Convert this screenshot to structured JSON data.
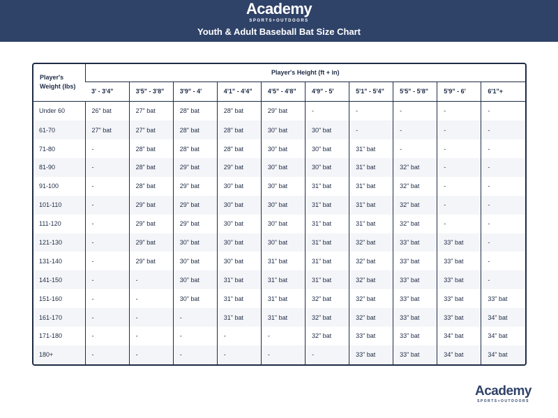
{
  "brand": {
    "name": "Academy",
    "tagline": "SPORTS+OUTDOORS"
  },
  "title": "Youth & Adult Baseball Bat Size Chart",
  "table": {
    "weight_header": "Player's Weight (lbs)",
    "height_header": "Player's Height (ft + in)",
    "heights": [
      "3' - 3'4\"",
      "3'5\" - 3'8\"",
      "3'9\" - 4'",
      "4'1\" - 4'4\"",
      "4'5\" - 4'8\"",
      "4'9\" - 5'",
      "5'1\" - 5'4\"",
      "5'5\" - 5'8\"",
      "5'9\" - 6'",
      "6'1\"+"
    ],
    "rows": [
      {
        "weight": "Under 60",
        "cells": [
          "26\" bat",
          "27\" bat",
          "28\" bat",
          "28\" bat",
          "29\" bat",
          "-",
          "-",
          "-",
          "-",
          "-"
        ]
      },
      {
        "weight": "61-70",
        "cells": [
          "27\" bat",
          "27\" bat",
          "28\" bat",
          "28\" bat",
          "30\" bat",
          "30\" bat",
          "-",
          "-",
          "-",
          "-"
        ]
      },
      {
        "weight": "71-80",
        "cells": [
          "-",
          "28\" bat",
          "28\" bat",
          "28\" bat",
          "30\" bat",
          "30\" bat",
          "31\" bat",
          "-",
          "-",
          "-"
        ]
      },
      {
        "weight": "81-90",
        "cells": [
          "-",
          "28\" bat",
          "29\" bat",
          "29\" bat",
          "30\" bat",
          "30\" bat",
          "31\" bat",
          "32\" bat",
          "-",
          "-"
        ]
      },
      {
        "weight": "91-100",
        "cells": [
          "-",
          "28\" bat",
          "29\" bat",
          "30\" bat",
          "30\" bat",
          "31\" bat",
          "31\" bat",
          "32\" bat",
          "-",
          "-"
        ]
      },
      {
        "weight": "101-110",
        "cells": [
          "-",
          "29\" bat",
          "29\" bat",
          "30\" bat",
          "30\" bat",
          "31\" bat",
          "31\" bat",
          "32\" bat",
          "-",
          "-"
        ]
      },
      {
        "weight": "111-120",
        "cells": [
          "-",
          "29\" bat",
          "29\" bat",
          "30\" bat",
          "30\" bat",
          "31\" bat",
          "31\" bat",
          "32\" bat",
          "-",
          "-"
        ]
      },
      {
        "weight": "121-130",
        "cells": [
          "-",
          "29\" bat",
          "30\" bat",
          "30\" bat",
          "30\" bat",
          "31\" bat",
          "32\" bat",
          "33\" bat",
          "33\" bat",
          "-"
        ]
      },
      {
        "weight": "131-140",
        "cells": [
          "-",
          "29\" bat",
          "30\" bat",
          "30\" bat",
          "31\" bat",
          "31\" bat",
          "32\" bat",
          "33\" bat",
          "33\" bat",
          "-"
        ]
      },
      {
        "weight": "141-150",
        "cells": [
          "-",
          "-",
          "30\" bat",
          "31\" bat",
          "31\" bat",
          "31\" bat",
          "32\" bat",
          "33\" bat",
          "33\" bat",
          "-"
        ]
      },
      {
        "weight": "151-160",
        "cells": [
          "-",
          "-",
          "30\" bat",
          "31\" bat",
          "31\" bat",
          "32\" bat",
          "32\" bat",
          "33\" bat",
          "33\" bat",
          "33\" bat"
        ]
      },
      {
        "weight": "161-170",
        "cells": [
          "-",
          "-",
          "-",
          "31\" bat",
          "31\" bat",
          "32\" bat",
          "32\" bat",
          "33\" bat",
          "33\" bat",
          "34\" bat"
        ]
      },
      {
        "weight": "171-180",
        "cells": [
          "-",
          "-",
          "-",
          "-",
          "-",
          "32\" bat",
          "33\" bat",
          "33\" bat",
          "34\" bat",
          "34\" bat"
        ]
      },
      {
        "weight": "180+",
        "cells": [
          "-",
          "-",
          "-",
          "-",
          "-",
          "-",
          "33\" bat",
          "33\" bat",
          "34\" bat",
          "34\" bat"
        ]
      }
    ]
  },
  "colors": {
    "header_bg": "#2f4268",
    "border": "#1d2a44",
    "stripe": "#f4f5f8"
  }
}
